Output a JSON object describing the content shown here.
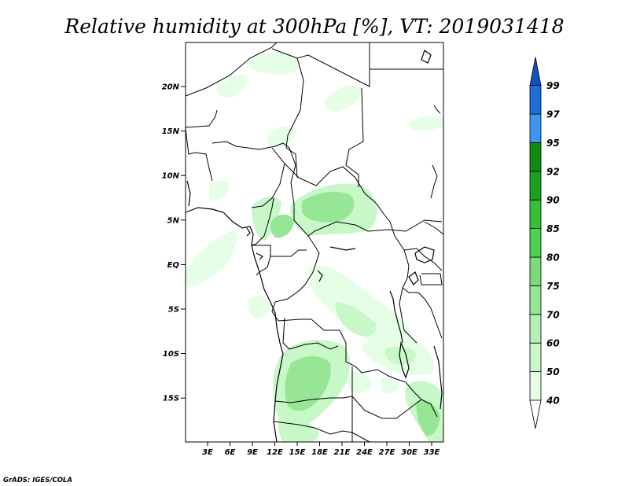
{
  "title": "Relative humidity at 300hPa [%], VT: 2019031418",
  "credit": "GrADS: IGES/COLA",
  "map": {
    "lat_labels": [
      "20N",
      "15N",
      "10N",
      "5N",
      "EQ",
      "5S",
      "10S",
      "15S"
    ],
    "lon_labels": [
      "3E",
      "6E",
      "9E",
      "12E",
      "15E",
      "18E",
      "21E",
      "24E",
      "27E",
      "30E",
      "33E"
    ]
  },
  "colorbar": {
    "labels": [
      "40",
      "50",
      "60",
      "70",
      "75",
      "80",
      "85",
      "90",
      "92",
      "95",
      "97",
      "99"
    ],
    "colors": [
      "#ffffff",
      "#e6fde6",
      "#c8f7c8",
      "#b4f0b4",
      "#96e696",
      "#78dc78",
      "#50d050",
      "#36c036",
      "#1ea01e",
      "#108c10",
      "#3c96f0",
      "#1e6edc",
      "#1450be"
    ]
  }
}
